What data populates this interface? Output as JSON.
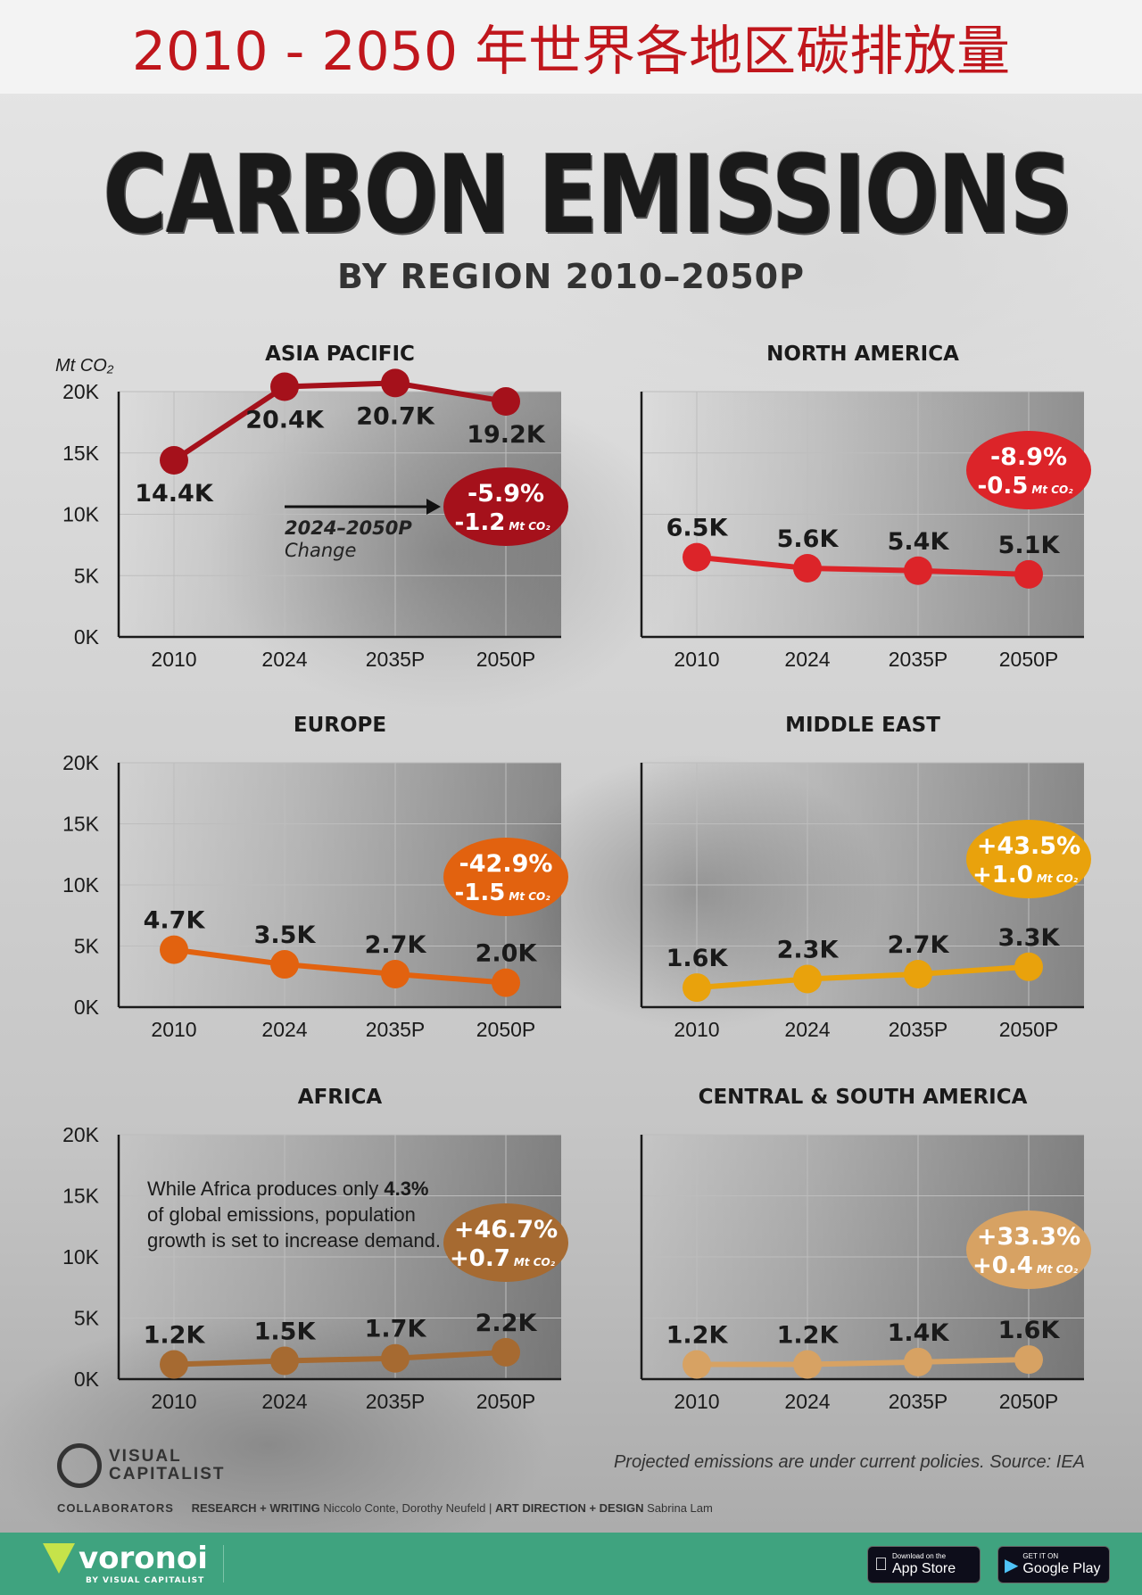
{
  "banner_title": "2010 - 2050 年世界各地区碳排放量",
  "title": "CARBON EMISSIONS",
  "subtitle": "BY REGION 2010–2050P",
  "y_unit_label": "Mt CO₂",
  "annotation": {
    "line1": "2024–2050P",
    "line2": "Change"
  },
  "africa_note": {
    "pre": "While Africa produces only ",
    "bold": "4.3%",
    "post": " of global emissions, population growth is set to increase demand."
  },
  "source": "Projected emissions are under current policies. Source: IEA",
  "brand": {
    "logo_line1": "VISUAL",
    "logo_line2": "CAPITALIST"
  },
  "collaborators": {
    "label": "COLLABORATORS",
    "research_label": "RESEARCH + WRITING",
    "research_names": "Niccolo Conte, Dorothy Neufeld",
    "art_label": "ART DIRECTION + DESIGN",
    "art_names": "Sabrina Lam"
  },
  "footer": {
    "brand": "voronoi",
    "brand_sub": "BY VISUAL CAPITALIST",
    "app_store_small": "Download on the",
    "app_store_big": "App Store",
    "google_small": "GET IT ON",
    "google_big": "Google Play"
  },
  "chart_data": [
    {
      "type": "line",
      "title": "ASIA PACIFIC",
      "categories": [
        "2010",
        "2024",
        "2035P",
        "2050P"
      ],
      "values": [
        14400,
        20400,
        20700,
        19200
      ],
      "labels": [
        "14.4K",
        "20.4K",
        "20.7K",
        "19.2K"
      ],
      "ylim": [
        0,
        20000
      ],
      "yticks": [
        "0K",
        "5K",
        "10K",
        "15K",
        "20K"
      ],
      "ylabel": "Mt CO₂",
      "color": "#a5111b",
      "change_pct": "-5.9%",
      "change_abs": "-1.2",
      "change_unit": "Mt CO₂",
      "grid": true
    },
    {
      "type": "line",
      "title": "NORTH AMERICA",
      "categories": [
        "2010",
        "2024",
        "2035P",
        "2050P"
      ],
      "values": [
        6500,
        5600,
        5400,
        5100
      ],
      "labels": [
        "6.5K",
        "5.6K",
        "5.4K",
        "5.1K"
      ],
      "ylim": [
        0,
        20000
      ],
      "color": "#dc2429",
      "change_pct": "-8.9%",
      "change_abs": "-0.5",
      "change_unit": "Mt CO₂",
      "grid": true
    },
    {
      "type": "line",
      "title": "EUROPE",
      "categories": [
        "2010",
        "2024",
        "2035P",
        "2050P"
      ],
      "values": [
        4700,
        3500,
        2700,
        2000
      ],
      "labels": [
        "4.7K",
        "3.5K",
        "2.7K",
        "2.0K"
      ],
      "ylim": [
        0,
        20000
      ],
      "yticks": [
        "0K",
        "5K",
        "10K",
        "15K",
        "20K"
      ],
      "color": "#e2620f",
      "change_pct": "-42.9%",
      "change_abs": "-1.5",
      "change_unit": "Mt CO₂",
      "grid": true
    },
    {
      "type": "line",
      "title": "MIDDLE EAST",
      "categories": [
        "2010",
        "2024",
        "2035P",
        "2050P"
      ],
      "values": [
        1600,
        2300,
        2700,
        3300
      ],
      "labels": [
        "1.6K",
        "2.3K",
        "2.7K",
        "3.3K"
      ],
      "ylim": [
        0,
        20000
      ],
      "color": "#e9a20c",
      "change_pct": "+43.5%",
      "change_abs": "+1.0",
      "change_unit": "Mt CO₂",
      "grid": true
    },
    {
      "type": "line",
      "title": "AFRICA",
      "categories": [
        "2010",
        "2024",
        "2035P",
        "2050P"
      ],
      "values": [
        1200,
        1500,
        1700,
        2200
      ],
      "labels": [
        "1.2K",
        "1.5K",
        "1.7K",
        "2.2K"
      ],
      "ylim": [
        0,
        20000
      ],
      "yticks": [
        "0K",
        "5K",
        "10K",
        "15K",
        "20K"
      ],
      "color": "#a66a31",
      "change_pct": "+46.7%",
      "change_abs": "+0.7",
      "change_unit": "Mt CO₂",
      "grid": true
    },
    {
      "type": "line",
      "title": "CENTRAL & SOUTH AMERICA",
      "categories": [
        "2010",
        "2024",
        "2035P",
        "2050P"
      ],
      "values": [
        1200,
        1200,
        1400,
        1600
      ],
      "labels": [
        "1.2K",
        "1.2K",
        "1.4K",
        "1.6K"
      ],
      "ylim": [
        0,
        20000
      ],
      "color": "#d7a263",
      "change_pct": "+33.3%",
      "change_abs": "+0.4",
      "change_unit": "Mt CO₂",
      "grid": true
    }
  ]
}
